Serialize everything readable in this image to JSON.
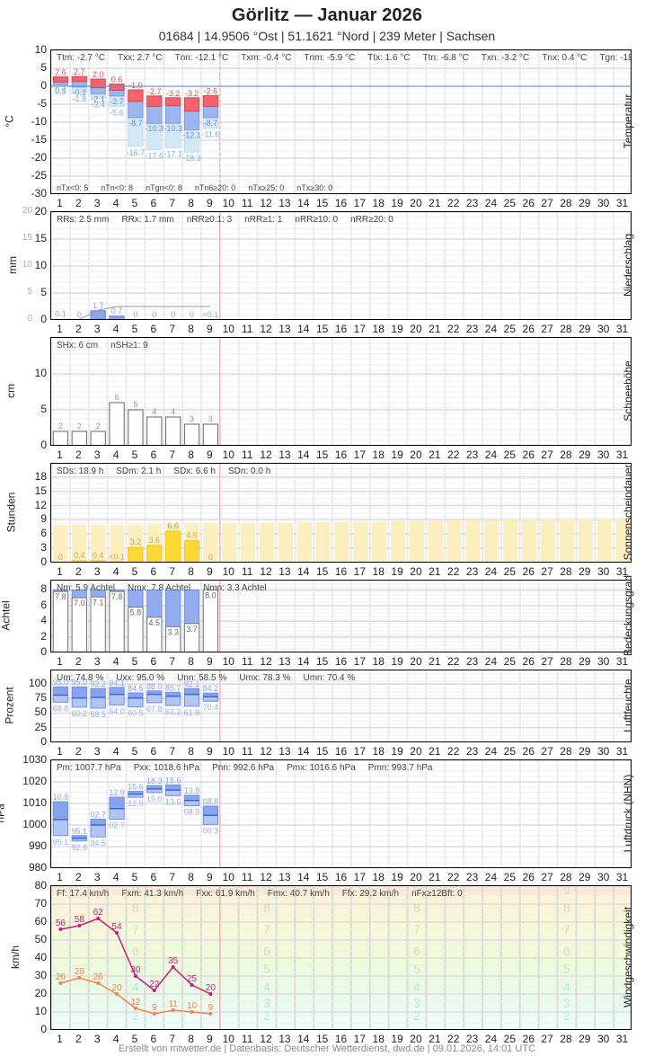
{
  "header": {
    "title": "Görlitz  —  Januar 2026",
    "subtitle": "01684  |  14.9506 °Ost  |  51.1621 °Nord  |  239 Meter  |  Sachsen"
  },
  "days": [
    1,
    2,
    3,
    4,
    5,
    6,
    7,
    8,
    9,
    10,
    11,
    12,
    13,
    14,
    15,
    16,
    17,
    18,
    19,
    20,
    21,
    22,
    23,
    24,
    25,
    26,
    27,
    28,
    29,
    30,
    31
  ],
  "today_marker_after_day": 9,
  "colors": {
    "tmax_bar": "#f4636b",
    "tmin_bar": "#9db5ef",
    "tground_bar": "#d3e8f6",
    "zero_line": "#5b8ee0",
    "precip_bar": "#8aa7ee",
    "sun_bar": "#fdd835",
    "sun_possible": "#fbefc0",
    "cloud_bar": "#93acf0",
    "humidity_bar": "#8eaaf0",
    "pressure_bar": "#8eaaf0",
    "gust_line": "#c81e7a",
    "wind_line": "#f2844c",
    "today_line": "#f2a7a7"
  },
  "footer": "Erstellt von mtwetter.de | Datenbasis: Deutscher Wetterdienst, dwd.de | 09.01.2026, 14:01 UTC",
  "chart_data": [
    {
      "type": "bar",
      "title": "Temperatur",
      "ylabel": "°C",
      "ylim": [
        -30,
        10
      ],
      "yticks": [
        10,
        5,
        0,
        -5,
        -10,
        -15,
        -20,
        -25,
        -30
      ],
      "categories": [
        1,
        2,
        3,
        4,
        5,
        6,
        7,
        8,
        9
      ],
      "series": [
        {
          "name": "Tmax",
          "values": [
            2.6,
            2.7,
            2.0,
            0.6,
            -1.0,
            -2.7,
            -3.2,
            -3.2,
            -2.6
          ]
        },
        {
          "name": "Tmittel",
          "values": [
            1.2,
            1.3,
            -0.4,
            -1.1,
            -4.2,
            -5.6,
            -5.4,
            -6.9,
            -5.6
          ]
        },
        {
          "name": "Tmin",
          "values": [
            0.4,
            -0.2,
            -2.1,
            -2.7,
            -8.7,
            -10.3,
            -10.3,
            -12.1,
            -8.7
          ]
        },
        {
          "name": "Tmin5cm",
          "values": [
            0.3,
            -1.8,
            -3.4,
            -5.6,
            -16.7,
            -17.6,
            -17.1,
            -18.3,
            -11.6
          ]
        }
      ],
      "stats": [
        "Ttm: -2.7 °C",
        "Txx: 2.7 °C",
        "Tnn: -12.1 °C",
        "Txm: -0.4 °C",
        "Tnm: -5.9 °C",
        "Ttx: 1.6 °C",
        "Ttn: -6.8 °C",
        "Txn: -3.2 °C",
        "Tnx: 0.4 °C",
        "Tgn: -18.3 °C"
      ],
      "bottom_stats": [
        "nTx<0: 5",
        "nTn<0: 8",
        "nTgn<0: 8",
        "nTn6≥20: 0",
        "nTx≥25: 0",
        "nTx≥30: 0"
      ]
    },
    {
      "type": "bar",
      "title": "Niederschlag",
      "ylabel": "mm",
      "ylim": [
        0,
        20
      ],
      "yticks": [
        20,
        15,
        10,
        5,
        0
      ],
      "categories": [
        1,
        2,
        3,
        4,
        5,
        6,
        7,
        8,
        9
      ],
      "values": [
        0.1,
        0,
        1.7,
        0.7,
        0,
        0,
        0,
        0,
        0.04
      ],
      "labels": [
        "0.1",
        "0",
        "1.7",
        "0.7",
        "0",
        "0",
        "0",
        "0",
        "<0.1"
      ],
      "cumulative": [
        0.1,
        0.1,
        1.8,
        2.5,
        2.5,
        2.5,
        2.5,
        2.5,
        2.5
      ],
      "stats": [
        "RRs: 2.5 mm",
        "RRx: 1.7 mm",
        "nRR≥0.1: 3",
        "nRR≥1: 1",
        "nRR≥10: 0",
        "nRR≥20: 0"
      ]
    },
    {
      "type": "bar",
      "title": "Schneehöhe",
      "ylabel": "cm",
      "ylim": [
        0,
        15
      ],
      "yticks": [
        10,
        5,
        0
      ],
      "categories": [
        1,
        2,
        3,
        4,
        5,
        6,
        7,
        8,
        9
      ],
      "values": [
        2,
        2,
        2,
        6,
        5,
        4,
        4,
        3,
        3
      ],
      "stats": [
        "SHx: 6 cm",
        "nSH≥1: 9"
      ]
    },
    {
      "type": "bar",
      "title": "Sonnenscheindauer",
      "ylabel": "Stunden",
      "ylim": [
        0,
        20.8
      ],
      "yticks": [
        18,
        15,
        12,
        9,
        6,
        3,
        0
      ],
      "categories": [
        1,
        2,
        3,
        4,
        5,
        6,
        7,
        8,
        9
      ],
      "values": [
        0,
        0.4,
        0.4,
        0.05,
        3.2,
        3.6,
        6.6,
        4.6,
        0
      ],
      "labels": [
        "0",
        "0.4",
        "0.4",
        "<0.1",
        "3.2",
        "3.6",
        "6.6",
        "4.6",
        "0"
      ],
      "possible": [
        8.0,
        8.0,
        8.0,
        8.0,
        8.1,
        8.1,
        8.2,
        8.2,
        8.3,
        8.3,
        8.3,
        8.4,
        8.4,
        8.5,
        8.5,
        8.5,
        8.6,
        8.6,
        8.7,
        8.7,
        8.8,
        8.8,
        8.9,
        8.9,
        9.0,
        9.0,
        9.1,
        9.1,
        9.1,
        9.2,
        9.3
      ],
      "stats": [
        "SDs: 18.9 h",
        "SDm: 2.1 h",
        "SDx: 6.6 h",
        "SDn: 0.0 h"
      ]
    },
    {
      "type": "bar",
      "title": "Bedeckungsgrad",
      "ylabel": "Achtel",
      "ylim": [
        0,
        9.2
      ],
      "yticks": [
        8,
        6,
        4,
        2,
        0
      ],
      "categories": [
        1,
        2,
        3,
        4,
        5,
        6,
        7,
        8,
        9
      ],
      "values": [
        7.8,
        7.0,
        7.1,
        7.8,
        5.8,
        4.5,
        3.3,
        3.7,
        8.0
      ],
      "labels": [
        "7.8",
        "7.0",
        "7.1",
        "7.8",
        "5.8",
        "4.5",
        "3.3",
        "3.7",
        "8.0"
      ],
      "stats": [
        "Nm: 5.9 Achtel",
        "Nmx: 7.8 Achtel",
        "Nmn: 3.3 Achtel"
      ]
    },
    {
      "type": "bar",
      "title": "Luftfeuchte",
      "ylabel": "Prozent",
      "ylim": [
        0,
        123
      ],
      "yticks": [
        100,
        75,
        50,
        25,
        0
      ],
      "categories": [
        1,
        2,
        3,
        4,
        5,
        6,
        7,
        8,
        9
      ],
      "series": [
        {
          "name": "Umax",
          "values": [
            95.0,
            95.0,
            92.2,
            94.1,
            84.5,
            88.0,
            85.7,
            92.1,
            84.2
          ]
        },
        {
          "name": "Umittel",
          "values": [
            81,
            76,
            77,
            82,
            76,
            82,
            79,
            82,
            78
          ]
        },
        {
          "name": "Umin",
          "values": [
            68.8,
            60.2,
            58.5,
            64.0,
            60.5,
            67.8,
            63.2,
            61.8,
            70.4
          ]
        }
      ],
      "stats": [
        "Um: 74.8 %",
        "Uxx: 95.0 %",
        "Unn: 58.5 %",
        "Umx: 78.3 %",
        "Umn: 70.4 %"
      ]
    },
    {
      "type": "bar",
      "title": "Luftdruck (NHN)",
      "ylabel": "hPa",
      "ylim": [
        980,
        1030
      ],
      "yticks": [
        1030,
        1020,
        1010,
        1000,
        990,
        980
      ],
      "categories": [
        1,
        2,
        3,
        4,
        5,
        6,
        7,
        8,
        9
      ],
      "series": [
        {
          "name": "Pmax",
          "values": [
            1010.8,
            995.1,
            1002.7,
            1012.9,
            1015.6,
            1018.3,
            1018.6,
            1013.8,
            1008.8
          ],
          "labels": [
            "10.8",
            "95.1",
            "02.7",
            "12.9",
            "15.6",
            "18.3",
            "18.6",
            "13.8",
            "08.8"
          ]
        },
        {
          "name": "Pmittel",
          "values": [
            1002.5,
            993.8,
            1000.0,
            1007.6,
            1014.3,
            1016.7,
            1016.2,
            1011.4,
            1004.5
          ]
        },
        {
          "name": "Pmin",
          "values": [
            995.1,
            992.6,
            994.5,
            1002.7,
            1012.9,
            1015.0,
            1013.6,
            1008.9,
            1000.3
          ],
          "labels": [
            "95.1",
            "92.6",
            "94.5",
            "02.7",
            "12.9",
            "15.0",
            "13.6",
            "08.9",
            "00.3"
          ]
        }
      ],
      "stats": [
        "Pm: 1007.7 hPa",
        "Pxx: 1018.6 hPa",
        "Pnn: 992.6 hPa",
        "Pmx: 1016.6 hPa",
        "Pmn: 993.7 hPa"
      ]
    },
    {
      "type": "line",
      "title": "Windgeschwindigkeit",
      "ylabel": "km/h",
      "ylim": [
        0,
        80
      ],
      "yticks": [
        80,
        70,
        60,
        50,
        40,
        30,
        20,
        10,
        0
      ],
      "x": [
        1,
        2,
        3,
        4,
        5,
        6,
        7,
        8,
        9
      ],
      "series": [
        {
          "name": "Böen (Fx)",
          "values": [
            56,
            58,
            62,
            54,
            30,
            22,
            35,
            25,
            20
          ]
        },
        {
          "name": "Mittel (Ff)",
          "values": [
            26,
            29,
            26,
            20,
            12,
            9,
            11,
            10,
            9
          ]
        }
      ],
      "beaufort_labels": [
        "2",
        "3",
        "4",
        "5",
        "6",
        "7",
        "8",
        "9"
      ],
      "stats": [
        "Ff: 17.4 km/h",
        "Fxm: 41.3 km/h",
        "Fxx: 61.9 km/h",
        "Fmx: 40.7 km/h",
        "Ffx: 29.2 km/h",
        "nFx≥12Bft: 0"
      ]
    }
  ]
}
